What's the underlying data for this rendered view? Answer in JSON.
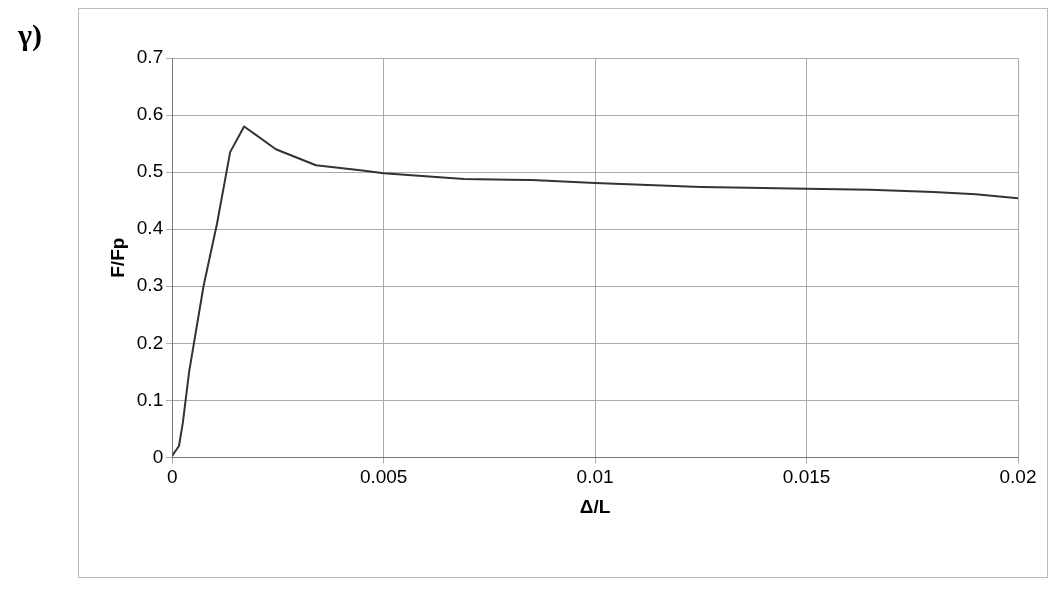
{
  "chart_data": {
    "type": "line",
    "xlabel": "Δ/L",
    "ylabel": "F/Fp",
    "annotations": [
      "γ)"
    ],
    "series": [
      {
        "color": "#333333",
        "x": [
          0,
          0.00016,
          0.00025,
          0.0004,
          0.00074,
          0.00106,
          0.00137,
          0.0017,
          0.00245,
          0.0034,
          0.0045,
          0.005,
          0.0069,
          0.0085,
          0.01,
          0.0125,
          0.015,
          0.0165,
          0.018,
          0.019,
          0.02
        ],
        "values": [
          0.003,
          0.02,
          0.06,
          0.15,
          0.3,
          0.41,
          0.535,
          0.58,
          0.54,
          0.512,
          0.503,
          0.498,
          0.488,
          0.486,
          0.481,
          0.474,
          0.471,
          0.469,
          0.465,
          0.461,
          0.454
        ]
      }
    ],
    "xlim": [
      0,
      0.02
    ],
    "xticks": [
      0,
      0.005,
      0.01,
      0.015,
      0.02
    ],
    "ylim": [
      0,
      0.7
    ],
    "yticks": [
      0,
      0.1,
      0.2,
      0.3,
      0.4,
      0.5,
      0.6,
      0.7
    ],
    "grid": true,
    "legend": false,
    "marker": "none",
    "line_style": "solid"
  }
}
